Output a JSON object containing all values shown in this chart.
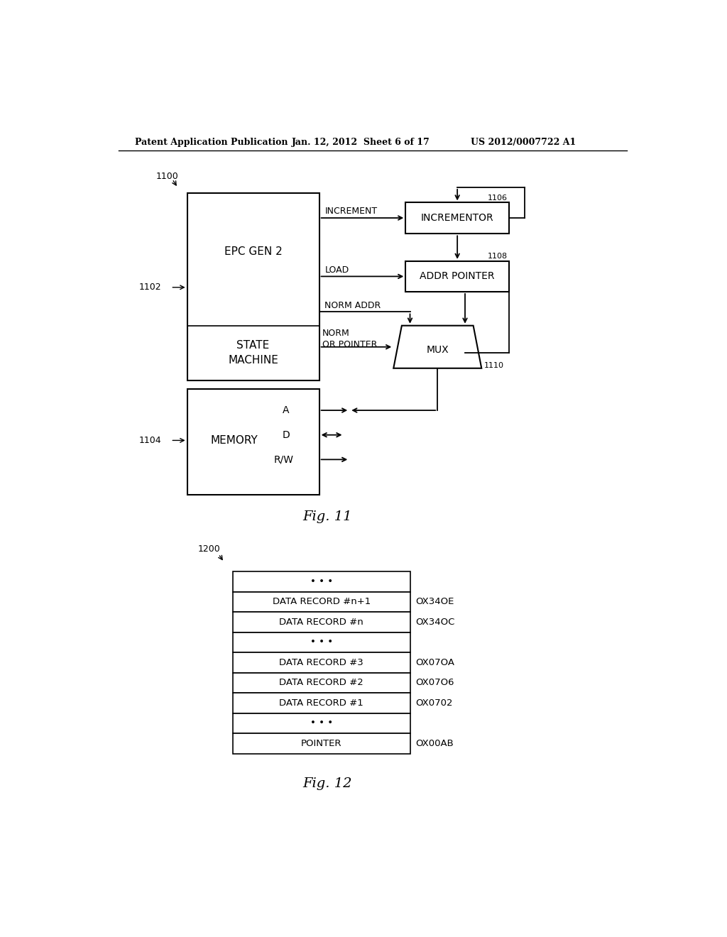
{
  "bg_color": "#ffffff",
  "header_left": "Patent Application Publication",
  "header_mid": "Jan. 12, 2012  Sheet 6 of 17",
  "header_right": "US 2012/0007722 A1",
  "fig11_label": "Fig. 11",
  "fig12_label": "Fig. 12",
  "label_1100": "1100",
  "label_1102": "1102",
  "label_1104": "1104",
  "label_1106": "1106",
  "label_1108": "1108",
  "label_1110": "1110",
  "label_1200": "1200",
  "box_incr_label": "INCREMENTOR",
  "box_addr_label": "ADDR POINTER",
  "box_mux_label": "MUX",
  "table_rows": [
    {
      "label": "• • •",
      "addr": ""
    },
    {
      "label": "DATA RECORD #n+1",
      "addr": "OX34OE"
    },
    {
      "label": "DATA RECORD #n",
      "addr": "OX34OC"
    },
    {
      "label": "• • •",
      "addr": ""
    },
    {
      "label": "DATA RECORD #3",
      "addr": "OX07OA"
    },
    {
      "label": "DATA RECORD #2",
      "addr": "OX07O6"
    },
    {
      "label": "DATA RECORD #1",
      "addr": "OX0702"
    },
    {
      "label": "• • •",
      "addr": ""
    },
    {
      "label": "POINTER",
      "addr": "OX00AB"
    }
  ]
}
